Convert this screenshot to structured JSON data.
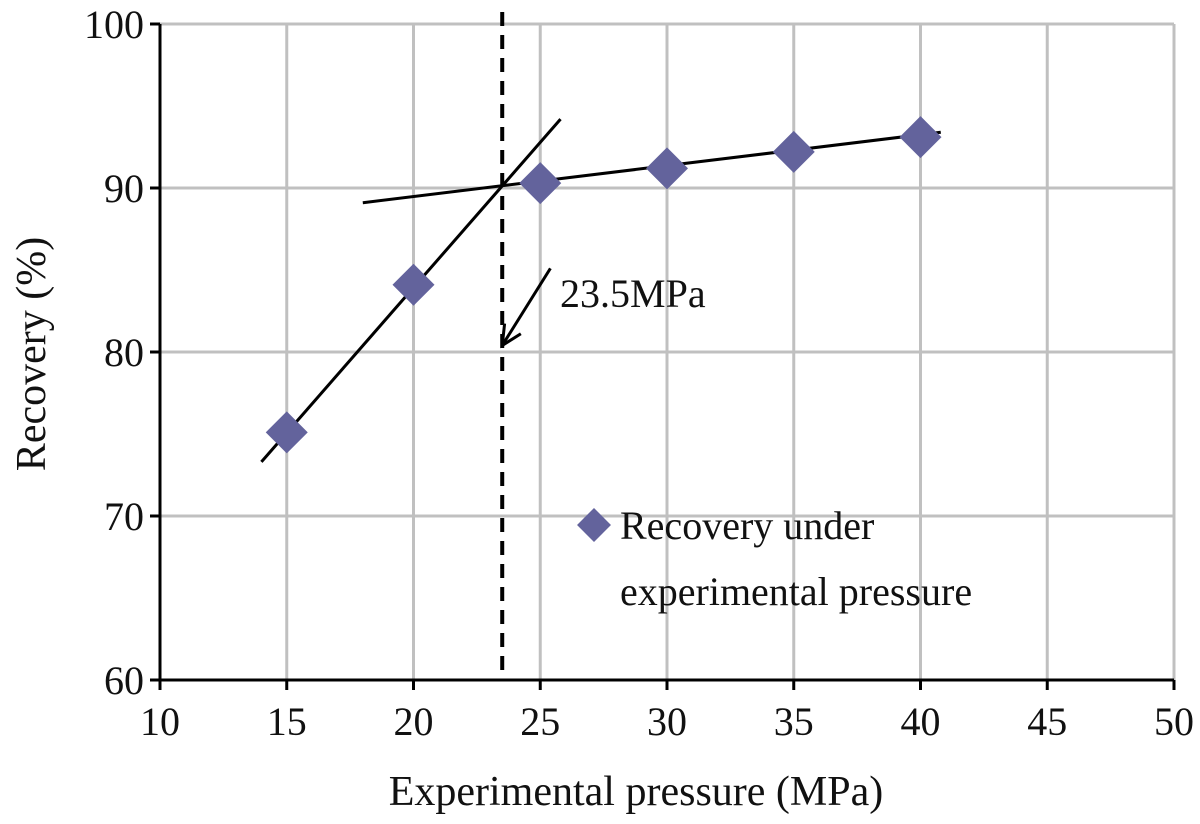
{
  "chart_data": {
    "type": "scatter",
    "xlabel": "Experimental pressure (MPa)",
    "ylabel": "Recovery (%)",
    "xlim": [
      10,
      50
    ],
    "ylim": [
      60,
      100
    ],
    "xticks": [
      10,
      15,
      20,
      25,
      30,
      35,
      40,
      45,
      50
    ],
    "yticks": [
      60,
      70,
      80,
      90,
      100
    ],
    "grid": true,
    "legend_position": "bottom-right",
    "series": [
      {
        "name": "Recovery under experimental pressure",
        "legend_lines": [
          "Recovery under",
          "experimental pressure"
        ],
        "marker": "diamond",
        "color": "#63639c",
        "x": [
          15,
          20,
          25,
          30,
          35,
          40
        ],
        "y": [
          75.1,
          84.1,
          90.3,
          91.2,
          92.2,
          93.1
        ]
      }
    ],
    "trend_lines": [
      {
        "name": "steep-trend-line",
        "x": [
          14,
          25.8
        ],
        "y": [
          73.3,
          94.2
        ]
      },
      {
        "name": "flat-trend-line",
        "x": [
          18,
          40.8
        ],
        "y": [
          89.1,
          93.4
        ]
      }
    ],
    "vertical_line": {
      "x": 23.5,
      "style": "dashed"
    },
    "annotation": {
      "text": "23.5MPa",
      "arrow_from": [
        25.4,
        85.1
      ],
      "arrow_to": [
        23.5,
        80.4
      ]
    },
    "colors": {
      "grid": "#c0c0c0",
      "axis": "#000000",
      "marker": "#63639c",
      "line": "#000000"
    }
  }
}
